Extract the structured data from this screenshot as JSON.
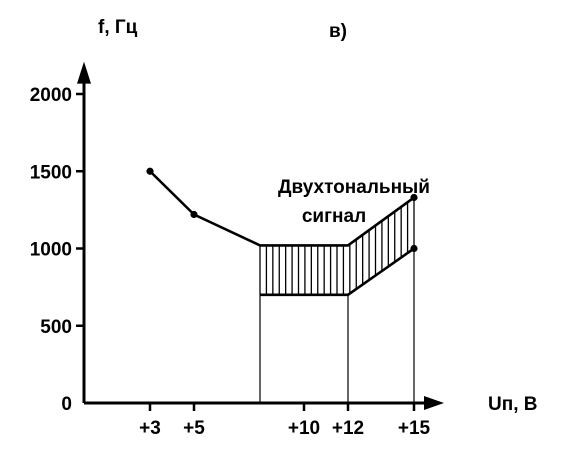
{
  "chart_data": {
    "type": "line",
    "panel_label": "в)",
    "ylabel": "f, Гц",
    "xlabel": "Uп, В",
    "y_ticks": [
      {
        "value": 0,
        "label": "0"
      },
      {
        "value": 500,
        "label": "500"
      },
      {
        "value": 1000,
        "label": "1000"
      },
      {
        "value": 1500,
        "label": "1500"
      },
      {
        "value": 2000,
        "label": "2000"
      }
    ],
    "x_ticks": [
      {
        "value": 3,
        "label": "+3"
      },
      {
        "value": 5,
        "label": "+5"
      },
      {
        "value": 10,
        "label": "+10"
      },
      {
        "value": 12,
        "label": "+12"
      },
      {
        "value": 15,
        "label": "+15"
      }
    ],
    "annotation_lines": [
      "Двухтональный",
      "сигнал"
    ],
    "series": [
      {
        "id": "single-tone",
        "points": [
          [
            3,
            1500
          ],
          [
            5,
            1220
          ],
          [
            8,
            1020
          ]
        ],
        "markers": [
          [
            3,
            1500
          ],
          [
            5,
            1220
          ]
        ]
      },
      {
        "id": "two-tone-upper",
        "points": [
          [
            8,
            1020
          ],
          [
            12,
            1020
          ],
          [
            15,
            1330
          ]
        ],
        "markers": [
          [
            15,
            1330
          ]
        ]
      },
      {
        "id": "two-tone-lower",
        "points": [
          [
            8,
            700
          ],
          [
            12,
            700
          ],
          [
            15,
            1000
          ]
        ],
        "markers": [
          [
            15,
            1000
          ]
        ]
      }
    ],
    "band_x_range": [
      8,
      15
    ],
    "ylim": [
      0,
      2300
    ],
    "xlim": [
      0,
      16
    ]
  }
}
